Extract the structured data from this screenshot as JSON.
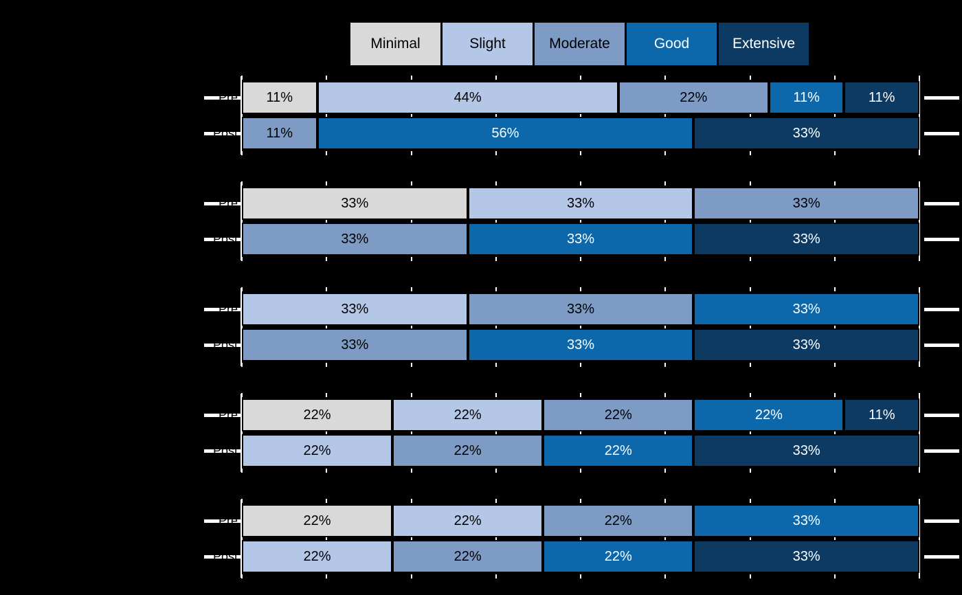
{
  "chart_data": {
    "type": "bar",
    "variant": "horizontal-stacked-likert",
    "title": "",
    "legend": {
      "position": "top",
      "entries": [
        {
          "label": "Minimal",
          "color": "#d9d9d9",
          "text_color": "#000000"
        },
        {
          "label": "Slight",
          "color": "#b4c7e7",
          "text_color": "#000000"
        },
        {
          "label": "Moderate",
          "color": "#7d9bc4",
          "text_color": "#000000"
        },
        {
          "label": "Good",
          "color": "#0c68aa",
          "text_color": "#ffffff"
        },
        {
          "label": "Extensive",
          "color": "#0d3a63",
          "text_color": "#ffffff"
        }
      ]
    },
    "x_axis": {
      "min": 0,
      "max": 100,
      "ticks_pct": [
        0,
        12.5,
        25,
        37.5,
        50,
        62.5,
        75,
        87.5,
        100
      ],
      "tick_labels_visible": false
    },
    "rows_per_group": [
      "Pre",
      "Post"
    ],
    "groups": [
      {
        "rows": [
          {
            "label": "Pre",
            "segments": [
              {
                "category": "Minimal",
                "pct_label": "11%",
                "ninths": 1
              },
              {
                "category": "Slight",
                "pct_label": "44%",
                "ninths": 4
              },
              {
                "category": "Moderate",
                "pct_label": "22%",
                "ninths": 2
              },
              {
                "category": "Good",
                "pct_label": "11%",
                "ninths": 1
              },
              {
                "category": "Extensive",
                "pct_label": "11%",
                "ninths": 1
              }
            ]
          },
          {
            "label": "Post",
            "segments": [
              {
                "category": "Moderate",
                "pct_label": "11%",
                "ninths": 1
              },
              {
                "category": "Good",
                "pct_label": "56%",
                "ninths": 5
              },
              {
                "category": "Extensive",
                "pct_label": "33%",
                "ninths": 3
              }
            ]
          }
        ]
      },
      {
        "rows": [
          {
            "label": "Pre",
            "segments": [
              {
                "category": "Minimal",
                "pct_label": "33%",
                "ninths": 3
              },
              {
                "category": "Slight",
                "pct_label": "33%",
                "ninths": 3
              },
              {
                "category": "Moderate",
                "pct_label": "33%",
                "ninths": 3
              }
            ]
          },
          {
            "label": "Post",
            "segments": [
              {
                "category": "Moderate",
                "pct_label": "33%",
                "ninths": 3
              },
              {
                "category": "Good",
                "pct_label": "33%",
                "ninths": 3
              },
              {
                "category": "Extensive",
                "pct_label": "33%",
                "ninths": 3
              }
            ]
          }
        ]
      },
      {
        "rows": [
          {
            "label": "Pre",
            "segments": [
              {
                "category": "Slight",
                "pct_label": "33%",
                "ninths": 3
              },
              {
                "category": "Moderate",
                "pct_label": "33%",
                "ninths": 3
              },
              {
                "category": "Good",
                "pct_label": "33%",
                "ninths": 3
              }
            ]
          },
          {
            "label": "Post",
            "segments": [
              {
                "category": "Moderate",
                "pct_label": "33%",
                "ninths": 3
              },
              {
                "category": "Good",
                "pct_label": "33%",
                "ninths": 3
              },
              {
                "category": "Extensive",
                "pct_label": "33%",
                "ninths": 3
              }
            ]
          }
        ]
      },
      {
        "rows": [
          {
            "label": "Pre",
            "segments": [
              {
                "category": "Minimal",
                "pct_label": "22%",
                "ninths": 2
              },
              {
                "category": "Slight",
                "pct_label": "22%",
                "ninths": 2
              },
              {
                "category": "Moderate",
                "pct_label": "22%",
                "ninths": 2
              },
              {
                "category": "Good",
                "pct_label": "22%",
                "ninths": 2
              },
              {
                "category": "Extensive",
                "pct_label": "11%",
                "ninths": 1
              }
            ]
          },
          {
            "label": "Post",
            "segments": [
              {
                "category": "Slight",
                "pct_label": "22%",
                "ninths": 2
              },
              {
                "category": "Moderate",
                "pct_label": "22%",
                "ninths": 2
              },
              {
                "category": "Good",
                "pct_label": "22%",
                "ninths": 2
              },
              {
                "category": "Extensive",
                "pct_label": "33%",
                "ninths": 3
              }
            ]
          }
        ]
      },
      {
        "rows": [
          {
            "label": "Pre",
            "segments": [
              {
                "category": "Minimal",
                "pct_label": "22%",
                "ninths": 2
              },
              {
                "category": "Slight",
                "pct_label": "22%",
                "ninths": 2
              },
              {
                "category": "Moderate",
                "pct_label": "22%",
                "ninths": 2
              },
              {
                "category": "Good",
                "pct_label": "33%",
                "ninths": 3
              }
            ]
          },
          {
            "label": "Post",
            "segments": [
              {
                "category": "Slight",
                "pct_label": "22%",
                "ninths": 2
              },
              {
                "category": "Moderate",
                "pct_label": "22%",
                "ninths": 2
              },
              {
                "category": "Good",
                "pct_label": "22%",
                "ninths": 2
              },
              {
                "category": "Extensive",
                "pct_label": "33%",
                "ninths": 3
              }
            ]
          }
        ]
      }
    ],
    "colors": {
      "background": "#000000",
      "axis": "#ffffff",
      "bar_border": "#000000"
    }
  }
}
